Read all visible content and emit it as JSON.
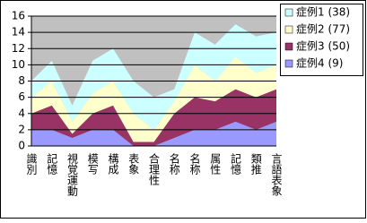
{
  "chart_data": {
    "type": "area",
    "stacked": true,
    "categories": [
      "識別",
      "記憶",
      "視覚運動",
      "模写",
      "構成",
      "表象",
      "合理性",
      "名称",
      "名称",
      "属性",
      "記憶",
      "類推",
      "言語表象"
    ],
    "series": [
      {
        "name": "症例1 (38)",
        "color": "#ccffff",
        "values": [
          2,
          2.5,
          2,
          4,
          4,
          4,
          4,
          1.5,
          4,
          4.5,
          4,
          4.5,
          4
        ]
      },
      {
        "name": "症例2 (77)",
        "color": "#ffffcc",
        "values": [
          2,
          3,
          1.5,
          2.5,
          3,
          3.5,
          1.5,
          1.5,
          4,
          2.5,
          4,
          3,
          3
        ]
      },
      {
        "name": "症例3 (50)",
        "color": "#993366",
        "values": [
          2,
          3,
          0.5,
          2,
          3,
          0.5,
          0.5,
          3,
          4,
          3.5,
          4,
          4,
          4
        ]
      },
      {
        "name": "症例4 (9)",
        "color": "#9999ff",
        "values": [
          2,
          2,
          1,
          2,
          2,
          0,
          0,
          1,
          2,
          2,
          3,
          2,
          3
        ]
      }
    ],
    "ylim": [
      0,
      16
    ],
    "yticks": [
      0,
      2,
      4,
      6,
      8,
      10,
      12,
      14,
      16
    ],
    "grid": true,
    "legend": "top-right"
  }
}
